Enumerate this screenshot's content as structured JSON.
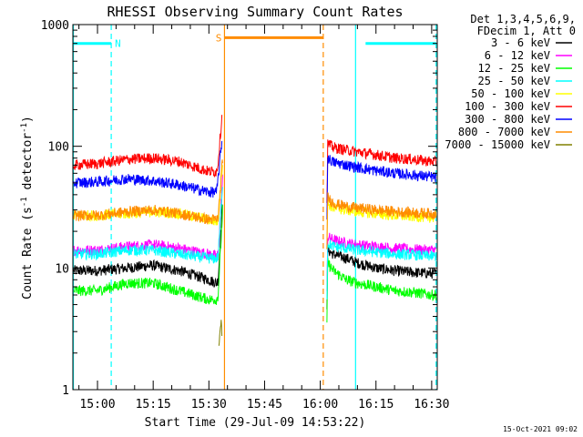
{
  "chart_data": {
    "type": "line",
    "title": "RHESSI Observing Summary Count Rates",
    "xlabel": "Start Time (29-Jul-09 14:53:22)",
    "ylabel_main": "Count Rate (s",
    "ylabel_sup1": "-1",
    "ylabel_mid": " detector",
    "ylabel_sup2": "-1",
    "ylabel_end": ")",
    "yscale": "log",
    "ylim": [
      1,
      1000
    ],
    "xlim_min_since_1450": [
      3.37,
      101.5
    ],
    "x_ticks": [
      {
        "t": 10,
        "label": "15:00"
      },
      {
        "t": 25,
        "label": "15:15"
      },
      {
        "t": 40,
        "label": "15:30"
      },
      {
        "t": 55,
        "label": "15:45"
      },
      {
        "t": 70,
        "label": "16:00"
      },
      {
        "t": 85,
        "label": "16:15"
      },
      {
        "t": 100,
        "label": "16:30"
      }
    ],
    "y_ticks": [
      {
        "v": 1,
        "label": "1"
      },
      {
        "v": 10,
        "label": "10"
      },
      {
        "v": 100,
        "label": "100"
      },
      {
        "v": 1000,
        "label": "1000"
      }
    ],
    "legend_header": [
      "Det 1,3,4,5,6,9,",
      "FDecim 1, Att 0"
    ],
    "series": [
      {
        "name": "3 - 6 keV",
        "color": "#000000",
        "x": [
          3.6,
          10,
          18,
          25,
          32,
          40,
          42.1,
          42.5,
          43.7,
          71.8,
          72.0,
          73.5,
          77,
          80,
          85,
          90,
          95,
          100,
          101.2
        ],
        "y": [
          9.5,
          9.5,
          10,
          10.5,
          9.5,
          8,
          7.5,
          8,
          35,
          5,
          14,
          13,
          12,
          11,
          10,
          9.5,
          9.2,
          9,
          9
        ]
      },
      {
        "name": "6 - 12 keV",
        "color": "#ff00ff",
        "x": [
          3.6,
          10,
          18,
          25,
          32,
          40,
          42.1,
          42.5,
          43.7,
          71.8,
          72.0,
          73.5,
          77,
          80,
          85,
          90,
          95,
          100,
          101.2
        ],
        "y": [
          14,
          14,
          15,
          15.5,
          14.5,
          13,
          12.5,
          13,
          55,
          6,
          18,
          17,
          16,
          15.5,
          15,
          14.5,
          14.2,
          14,
          14
        ]
      },
      {
        "name": "12 - 25 keV",
        "color": "#00ff00",
        "x": [
          3.6,
          10,
          18,
          25,
          32,
          40,
          42.1,
          42.5,
          43.7,
          71.8,
          72.0,
          73.5,
          77,
          80,
          85,
          90,
          95,
          100,
          101.2
        ],
        "y": [
          6.5,
          6.5,
          7.5,
          7.5,
          6.5,
          5.5,
          5.5,
          6,
          30,
          3.5,
          11,
          9.5,
          8,
          7.5,
          7,
          6.5,
          6.3,
          6,
          6
        ]
      },
      {
        "name": "25 - 50 keV",
        "color": "#00ffff",
        "x": [
          3.6,
          10,
          18,
          25,
          32,
          40,
          42.1,
          42.5,
          43.7,
          71.8,
          72.0,
          73.5,
          77,
          80,
          85,
          90,
          95,
          100,
          101.2
        ],
        "y": [
          13,
          13,
          14,
          14,
          13,
          12,
          12,
          12.5,
          50,
          6,
          16,
          15,
          14.5,
          14,
          13.5,
          13,
          12.8,
          12.5,
          12.5
        ]
      },
      {
        "name": "50 - 100 keV",
        "color": "#ffff00",
        "x": [
          3.6,
          10,
          18,
          25,
          32,
          40,
          42.1,
          42.5,
          43.7,
          71.8,
          72.0,
          73.5,
          77,
          80,
          85,
          90,
          95,
          100,
          101.2
        ],
        "y": [
          27,
          27,
          28,
          29,
          28,
          25,
          24,
          25,
          75,
          15,
          34,
          31,
          30,
          29,
          28,
          27,
          26.5,
          26,
          26
        ]
      },
      {
        "name": "100 - 300 keV",
        "color": "#ff0000",
        "x": [
          3.6,
          10,
          18,
          25,
          32,
          40,
          42.1,
          42.5,
          43.5,
          71.8,
          72.0,
          73.5,
          77,
          80,
          85,
          90,
          95,
          100,
          101.2
        ],
        "y": [
          70,
          72,
          78,
          80,
          75,
          62,
          62,
          75,
          175,
          35,
          105,
          98,
          93,
          90,
          85,
          80,
          78,
          75,
          74
        ]
      },
      {
        "name": "300 - 800 keV",
        "color": "#0000ff",
        "x": [
          3.6,
          10,
          18,
          25,
          32,
          40,
          42.1,
          42.5,
          43.5,
          71.8,
          72.0,
          73.5,
          77,
          80,
          85,
          90,
          95,
          100,
          101.2
        ],
        "y": [
          50,
          51,
          54,
          52,
          48,
          42,
          42,
          55,
          110,
          25,
          80,
          74,
          70,
          67,
          63,
          60,
          58,
          56,
          55
        ]
      },
      {
        "name": "800 - 7000 keV",
        "color": "#ff8c00",
        "x": [
          3.6,
          10,
          18,
          25,
          32,
          40,
          42.1,
          42.5,
          43.7,
          71.8,
          72.0,
          73.5,
          77,
          80,
          85,
          90,
          95,
          100,
          101.2
        ],
        "y": [
          27,
          27,
          29,
          30,
          28,
          25,
          25,
          26,
          80,
          15,
          38,
          34,
          32,
          31,
          30,
          29,
          28.5,
          28,
          28
        ]
      },
      {
        "name": "7000 - 15000 keV",
        "color": "#808000",
        "x": [
          42.7,
          43.0,
          43.3,
          43.5
        ],
        "y": [
          2.2,
          3.0,
          3.8,
          2.8
        ]
      }
    ],
    "flags": [
      {
        "label": "N",
        "color": "#00ffff",
        "x_start": 3.4,
        "x_end": 13.7,
        "y": 700
      },
      {
        "label": "",
        "color": "#00ffff",
        "x_start": 82.2,
        "x_end": 101.2,
        "y": 700
      },
      {
        "label": "S",
        "color": "#ff8c00",
        "x_start": 44.2,
        "x_end": 70.8,
        "y": 780
      }
    ],
    "vlines": [
      {
        "x": 3.5,
        "color": "#00ffff",
        "style": "solid"
      },
      {
        "x": 13.7,
        "color": "#00ffff",
        "style": "dashed"
      },
      {
        "x": 44.2,
        "color": "#ff8c00",
        "style": "solid"
      },
      {
        "x": 70.8,
        "color": "#ff8c00",
        "style": "dashed"
      },
      {
        "x": 79.5,
        "color": "#00ffff",
        "style": "solid"
      },
      {
        "x": 101.2,
        "color": "#00ffff",
        "style": "dashed"
      }
    ],
    "timestamp": "15-Oct-2021 09:02"
  }
}
